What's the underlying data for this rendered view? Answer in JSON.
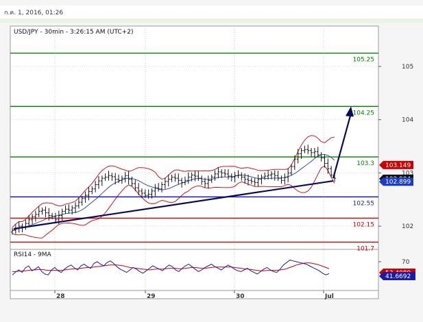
{
  "header": {
    "timestamp": "ก.ค. 1, 2016, 01:26"
  },
  "chart_data": {
    "type": "candlestick",
    "title": "USD/JPY - 30min - 3:26:15 AM (UTC+2)",
    "ylim": [
      101.7,
      105.7
    ],
    "y_ticks": [
      "105",
      "104",
      "103",
      "102"
    ],
    "x_labels": [
      "28",
      "29",
      "30",
      "Jul"
    ],
    "levels": [
      {
        "label": "105.25",
        "value": 105.25,
        "color": "#008000"
      },
      {
        "label": "104.25",
        "value": 104.25,
        "color": "#008000"
      },
      {
        "label": "103.3",
        "value": 103.3,
        "color": "#008000"
      },
      {
        "label": "102.55",
        "value": 102.55,
        "color": "#1a1aa8"
      },
      {
        "label": "102.15",
        "value": 102.15,
        "color": "#cc0000"
      },
      {
        "label": "101.7",
        "value": 101.7,
        "color": "#cc0000"
      }
    ],
    "price_tags": [
      {
        "label": "103.149",
        "value": 103.149,
        "color": "#cc0000"
      },
      {
        "label": "102.904",
        "value": 102.904,
        "color": "#111111"
      },
      {
        "label": "102.899",
        "value": 102.899,
        "color": "#1a3cc8"
      }
    ],
    "trendline": {
      "from_value": 101.95,
      "to_value": 102.85
    },
    "arrow": {
      "from_value": 102.9,
      "to_value": 104.25
    },
    "closes": [
      101.92,
      101.96,
      102.0,
      101.98,
      102.05,
      102.12,
      102.18,
      102.22,
      102.28,
      102.3,
      102.25,
      102.2,
      102.18,
      102.12,
      102.2,
      102.28,
      102.32,
      102.3,
      102.34,
      102.38,
      102.45,
      102.52,
      102.58,
      102.65,
      102.7,
      102.78,
      102.85,
      102.9,
      102.92,
      102.95,
      102.93,
      102.88,
      102.86,
      102.9,
      102.95,
      102.88,
      102.8,
      102.72,
      102.66,
      102.62,
      102.58,
      102.6,
      102.66,
      102.72,
      102.7,
      102.78,
      102.84,
      102.88,
      102.92,
      102.9,
      102.86,
      102.82,
      102.86,
      102.92,
      102.96,
      102.94,
      102.9,
      102.84,
      102.8,
      102.86,
      102.92,
      102.98,
      103.02,
      103.0,
      102.98,
      102.94,
      102.92,
      102.95,
      102.96,
      102.92,
      102.88,
      102.86,
      102.84,
      102.82,
      102.88,
      102.92,
      102.94,
      102.96,
      102.98,
      102.95,
      102.9,
      102.86,
      102.92,
      103.0,
      103.12,
      103.26,
      103.36,
      103.42,
      103.44,
      103.42,
      103.38,
      103.4,
      103.34,
      103.28,
      103.18,
      103.08,
      102.96,
      102.9
    ],
    "rsi": {
      "title": "RSI14 - 9MA",
      "ylim": [
        0,
        100
      ],
      "y_ticks": [
        "70"
      ],
      "tags": [
        {
          "label": "53.4089",
          "value": 53.4089,
          "color": "#cc0000"
        },
        {
          "label": "41.6692",
          "value": 41.6692,
          "color": "#1a1aa8"
        }
      ],
      "values": [
        38,
        45,
        50,
        44,
        55,
        60,
        48,
        52,
        58,
        46,
        40,
        38,
        50,
        56,
        48,
        44,
        52,
        58,
        62,
        55,
        50,
        60,
        64,
        58,
        54,
        66,
        70,
        64,
        60,
        68,
        72,
        66,
        58,
        52,
        48,
        44,
        50,
        56,
        52,
        46,
        42,
        48,
        54,
        60,
        56,
        52,
        48,
        56,
        62,
        58,
        50,
        46,
        54,
        60,
        64,
        58,
        52,
        46,
        50,
        56,
        60,
        64,
        58,
        54,
        50,
        56,
        62,
        58,
        52,
        48,
        46,
        50,
        54,
        48,
        44,
        40,
        46,
        52,
        56,
        50,
        46,
        44,
        52,
        62,
        68,
        74,
        72,
        70,
        68,
        66,
        64,
        60,
        56,
        52,
        48,
        42,
        38,
        41
      ],
      "ma": [
        46,
        46,
        47,
        47,
        48,
        49,
        50,
        50,
        51,
        51,
        50,
        49,
        49,
        49,
        49,
        49,
        50,
        51,
        52,
        53,
        53,
        54,
        55,
        56,
        56,
        57,
        58,
        59,
        60,
        61,
        62,
        62,
        62,
        61,
        60,
        58,
        56,
        55,
        54,
        53,
        52,
        51,
        50,
        51,
        52,
        52,
        52,
        53,
        54,
        54,
        54,
        53,
        53,
        54,
        55,
        56,
        56,
        55,
        54,
        54,
        55,
        56,
        57,
        57,
        57,
        57,
        57,
        57,
        56,
        55,
        54,
        53,
        52,
        51,
        50,
        49,
        48,
        48,
        49,
        49,
        49,
        49,
        50,
        51,
        53,
        56,
        59,
        62,
        64,
        66,
        67,
        67,
        66,
        64,
        62,
        59,
        56,
        53
      ]
    }
  }
}
